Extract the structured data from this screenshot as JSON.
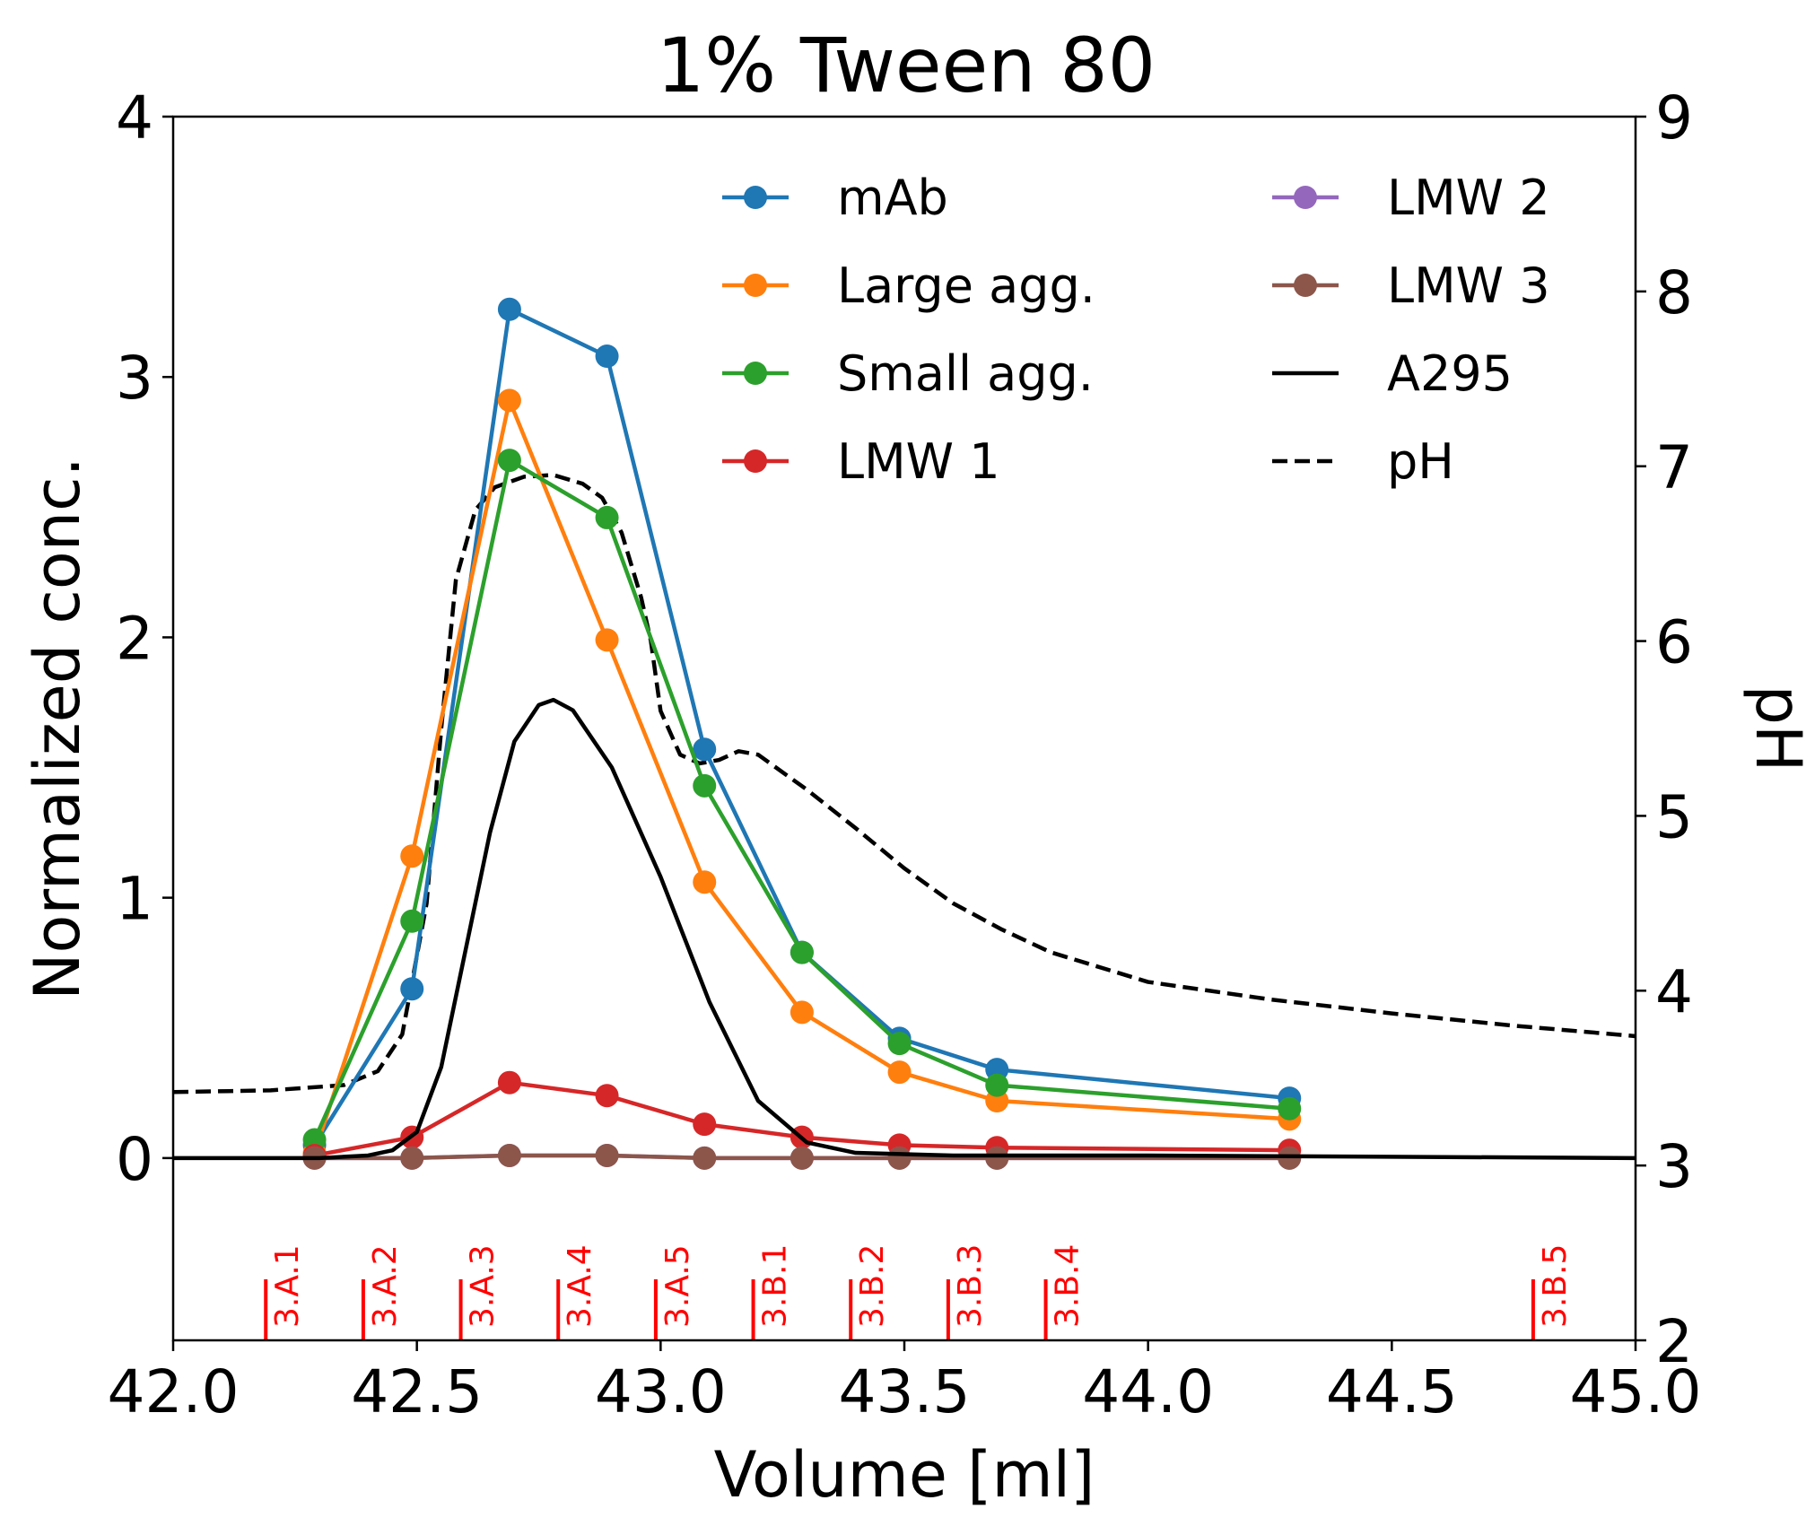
{
  "chart_data": {
    "type": "line",
    "title": "1% Tween 80",
    "xlabel": "Volume [ml]",
    "ylabel": "Normalized conc.",
    "y2label": "pH",
    "xlim": [
      42.0,
      45.0
    ],
    "ylim": [
      -0.7,
      4.0
    ],
    "y2lim": [
      2,
      9
    ],
    "xticks": [
      "42.0",
      "42.5",
      "43.0",
      "43.5",
      "44.0",
      "44.5",
      "45.0"
    ],
    "yticks": [
      "0",
      "1",
      "2",
      "3",
      "4"
    ],
    "y2ticks": [
      "2",
      "3",
      "4",
      "5",
      "6",
      "7",
      "8",
      "9"
    ],
    "legend_position": "top-right",
    "legend_columns": 2,
    "x": [
      42.29,
      42.49,
      42.69,
      42.89,
      43.09,
      43.29,
      43.49,
      43.69,
      44.29
    ],
    "series": [
      {
        "name": "mAb",
        "color": "#1f77b4",
        "marker": "circle",
        "values": [
          0.05,
          0.65,
          3.26,
          3.08,
          1.57,
          0.79,
          0.46,
          0.34,
          0.23
        ]
      },
      {
        "name": "Large agg.",
        "color": "#ff7f0e",
        "marker": "circle",
        "values": [
          0.02,
          1.16,
          2.91,
          1.99,
          1.06,
          0.56,
          0.33,
          0.22,
          0.15
        ]
      },
      {
        "name": "Small agg.",
        "color": "#2ca02c",
        "marker": "circle",
        "values": [
          0.07,
          0.91,
          2.68,
          2.46,
          1.43,
          0.79,
          0.44,
          0.28,
          0.19
        ]
      },
      {
        "name": "LMW 1",
        "color": "#d62728",
        "marker": "circle",
        "values": [
          0.01,
          0.08,
          0.29,
          0.24,
          0.13,
          0.08,
          0.05,
          0.04,
          0.03
        ]
      },
      {
        "name": "LMW 2",
        "color": "#9467bd",
        "marker": "circle",
        "values": [
          0.0,
          0.0,
          0.01,
          0.01,
          0.0,
          0.0,
          0.0,
          0.0,
          0.0
        ]
      },
      {
        "name": "LMW 3",
        "color": "#8c564b",
        "marker": "circle",
        "values": [
          0.0,
          0.0,
          0.01,
          0.01,
          0.0,
          0.0,
          0.0,
          0.0,
          0.0
        ]
      }
    ],
    "a295": {
      "name": "A295",
      "color": "#000000",
      "style": "solid",
      "axis": "left",
      "x": [
        42.0,
        42.3,
        42.4,
        42.45,
        42.5,
        42.55,
        42.6,
        42.65,
        42.7,
        42.75,
        42.78,
        42.82,
        42.9,
        43.0,
        43.1,
        43.2,
        43.3,
        43.4,
        43.6,
        44.0,
        45.0
      ],
      "y": [
        0.0,
        0.0,
        0.01,
        0.03,
        0.1,
        0.35,
        0.8,
        1.25,
        1.6,
        1.74,
        1.76,
        1.72,
        1.5,
        1.08,
        0.6,
        0.22,
        0.06,
        0.02,
        0.01,
        0.01,
        0.0
      ]
    },
    "ph": {
      "name": "pH",
      "color": "#000000",
      "style": "dashed",
      "axis": "right",
      "x": [
        42.0,
        42.2,
        42.35,
        42.42,
        42.47,
        42.52,
        42.55,
        42.58,
        42.62,
        42.66,
        42.72,
        42.78,
        42.84,
        42.88,
        42.92,
        42.96,
        42.98,
        43.0,
        43.04,
        43.08,
        43.12,
        43.16,
        43.2,
        43.3,
        43.4,
        43.5,
        43.6,
        43.7,
        43.8,
        44.0,
        44.25,
        44.5,
        44.75,
        45.0
      ],
      "y": [
        3.42,
        3.43,
        3.46,
        3.54,
        3.75,
        4.5,
        5.5,
        6.35,
        6.75,
        6.88,
        6.94,
        6.95,
        6.9,
        6.82,
        6.62,
        6.25,
        6.0,
        5.6,
        5.35,
        5.3,
        5.32,
        5.37,
        5.35,
        5.15,
        4.93,
        4.7,
        4.5,
        4.35,
        4.22,
        4.05,
        3.95,
        3.87,
        3.8,
        3.74
      ]
    },
    "fraction_labels": [
      {
        "label": "3.A.1",
        "x": 42.19
      },
      {
        "label": "3.A.2",
        "x": 42.39
      },
      {
        "label": "3.A.3",
        "x": 42.59
      },
      {
        "label": "3.A.4",
        "x": 42.79
      },
      {
        "label": "3.A.5",
        "x": 42.99
      },
      {
        "label": "3.B.1",
        "x": 43.19
      },
      {
        "label": "3.B.2",
        "x": 43.39
      },
      {
        "label": "3.B.3",
        "x": 43.59
      },
      {
        "label": "3.B.4",
        "x": 43.79
      },
      {
        "label": "3.B.5",
        "x": 44.79
      }
    ]
  }
}
